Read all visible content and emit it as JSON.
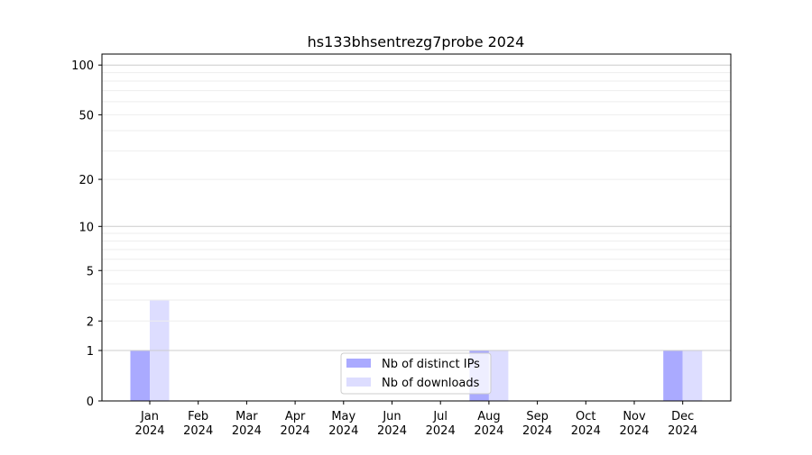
{
  "chart_data": {
    "type": "bar",
    "title": "hs133bhsentrezg7probe 2024",
    "categories": [
      "Jan\n2024",
      "Feb\n2024",
      "Mar\n2024",
      "Apr\n2024",
      "May\n2024",
      "Jun\n2024",
      "Jul\n2024",
      "Aug\n2024",
      "Sep\n2024",
      "Oct\n2024",
      "Nov\n2024",
      "Dec\n2024"
    ],
    "series": [
      {
        "name": "Nb of distinct IPs",
        "color": "#aaaaff",
        "values": [
          1,
          0,
          0,
          0,
          0,
          0,
          0,
          1,
          0,
          0,
          0,
          1
        ]
      },
      {
        "name": "Nb of downloads",
        "color": "#ddddff",
        "values": [
          3,
          0,
          0,
          0,
          0,
          0,
          0,
          1,
          0,
          0,
          0,
          1
        ]
      }
    ],
    "yscale": "log(1+y)",
    "ylim": [
      0,
      116
    ],
    "yticks": [
      0,
      1,
      2,
      5,
      10,
      20,
      50,
      100
    ],
    "grid": true,
    "legend": "lower center",
    "xlabel": "",
    "ylabel": ""
  }
}
